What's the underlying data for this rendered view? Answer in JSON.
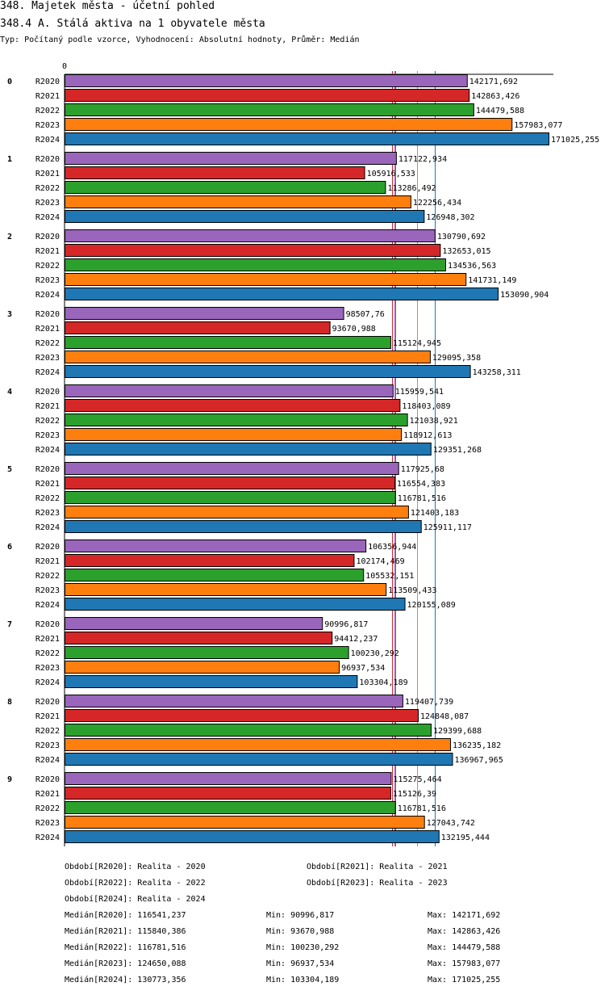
{
  "header": {
    "title": "348. Majetek města - účetní pohled",
    "subtitle": "348.4 A. Stálá aktiva na 1 obyvatele města",
    "info": "Typ: Počítaný podle vzorce, Vyhodnocení: Absolutní hodnoty, Průměr: Medián"
  },
  "chart_data": {
    "type": "bar",
    "orientation": "horizontal",
    "axis_zero_label": "0",
    "xlim": [
      0,
      171025.255
    ],
    "categories": [
      "0",
      "1",
      "2",
      "3",
      "4",
      "5",
      "6",
      "7",
      "8",
      "9"
    ],
    "series": [
      {
        "name": "R2020",
        "color": "#9966bb",
        "values": [
          142171.692,
          117122.934,
          130790.692,
          98507.76,
          115959.541,
          117925.68,
          106356.944,
          90996.817,
          119407.739,
          115275.464
        ],
        "labels": [
          "142171,692",
          "117122,934",
          "130790,692",
          "98507,76",
          "115959,541",
          "117925,68",
          "106356,944",
          "90996,817",
          "119407,739",
          "115275,464"
        ]
      },
      {
        "name": "R2021",
        "color": "#d62728",
        "values": [
          142863.426,
          105916.533,
          132653.015,
          93670.988,
          118403.089,
          116554.383,
          102174.469,
          94412.237,
          124848.087,
          115126.39
        ],
        "labels": [
          "142863,426",
          "105916,533",
          "132653,015",
          "93670,988",
          "118403,089",
          "116554,383",
          "102174,469",
          "94412,237",
          "124848,087",
          "115126,39"
        ]
      },
      {
        "name": "R2022",
        "color": "#2ca02c",
        "values": [
          144479.588,
          113286.492,
          134536.563,
          115124.945,
          121038.921,
          116781.516,
          105532.151,
          100230.292,
          129399.688,
          116781.516
        ],
        "labels": [
          "144479,588",
          "113286,492",
          "134536,563",
          "115124,945",
          "121038,921",
          "116781,516",
          "105532,151",
          "100230,292",
          "129399,688",
          "116781,516"
        ]
      },
      {
        "name": "R2023",
        "color": "#ff7f0e",
        "values": [
          157983.077,
          122256.434,
          141731.149,
          129095.358,
          118912.613,
          121403.183,
          113509.433,
          96937.534,
          136235.182,
          127043.742
        ],
        "labels": [
          "157983,077",
          "122256,434",
          "141731,149",
          "129095,358",
          "118912,613",
          "121403,183",
          "113509,433",
          "96937,534",
          "136235,182",
          "127043,742"
        ]
      },
      {
        "name": "R2024",
        "color": "#1f77b4",
        "values": [
          171025.255,
          126948.302,
          153090.904,
          143258.311,
          129351.268,
          125911.117,
          120155.089,
          103304.189,
          136967.965,
          132195.444
        ],
        "labels": [
          "171025,255",
          "126948,302",
          "153090,904",
          "143258,311",
          "129351,268",
          "125911,117",
          "120155,089",
          "103304,189",
          "136967,965",
          "132195,444"
        ]
      }
    ],
    "medians": [
      {
        "series": "R2020",
        "value": 116541.237
      },
      {
        "series": "R2021",
        "value": 115840.386
      },
      {
        "series": "R2022",
        "value": 116781.516
      },
      {
        "series": "R2023",
        "value": 124650.088
      },
      {
        "series": "R2024",
        "value": 130773.356
      }
    ]
  },
  "legend": [
    {
      "text": "Období[R2020]: Realita - 2020"
    },
    {
      "text": "Období[R2021]: Realita - 2021"
    },
    {
      "text": "Období[R2022]: Realita - 2022"
    },
    {
      "text": "Období[R2023]: Realita - 2023"
    },
    {
      "text": "Období[R2024]: Realita - 2024"
    }
  ],
  "stats": [
    {
      "median": "Medián[R2020]: 116541,237",
      "min": "Min: 90996,817",
      "max": "Max: 142171,692"
    },
    {
      "median": "Medián[R2021]: 115840,386",
      "min": "Min: 93670,988",
      "max": "Max: 142863,426"
    },
    {
      "median": "Medián[R2022]: 116781,516",
      "min": "Min: 100230,292",
      "max": "Max: 144479,588"
    },
    {
      "median": "Medián[R2023]: 124650,088",
      "min": "Min: 96937,534",
      "max": "Max: 157983,077"
    },
    {
      "median": "Medián[R2024]: 130773,356",
      "min": "Min: 103304,189",
      "max": "Max: 171025,255"
    }
  ]
}
